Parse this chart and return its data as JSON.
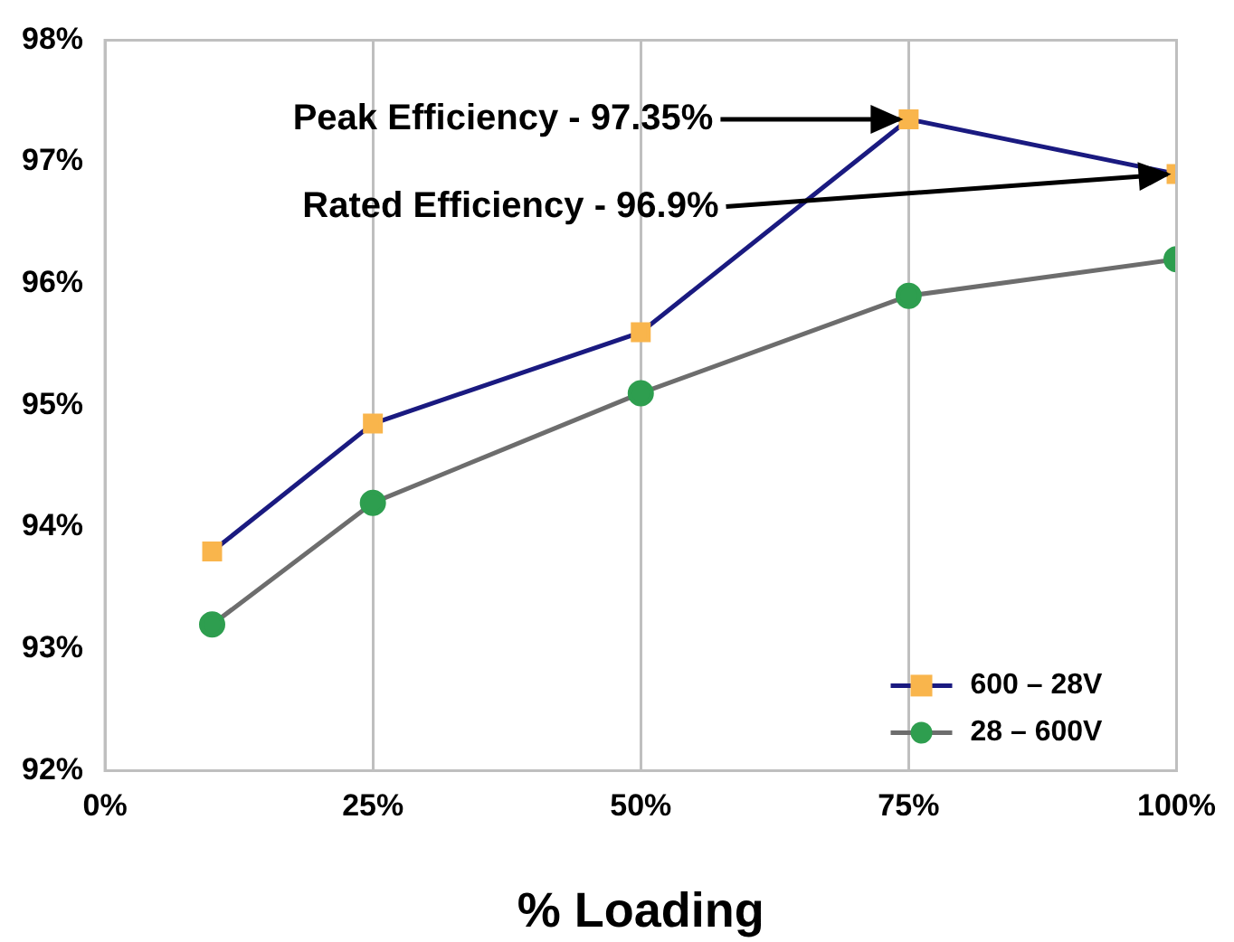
{
  "chart_data": {
    "type": "line",
    "xlabel": "% Loading",
    "x": [
      10,
      25,
      50,
      75,
      100
    ],
    "series": [
      {
        "name": "600 – 28V",
        "color": "#1a1a80",
        "colors": [
          "#f9b54c",
          "#f9b54c",
          "#f9b54c",
          "#f9b54c",
          "#f9b54c"
        ],
        "marker": "square",
        "values": [
          93.8,
          94.85,
          95.6,
          97.35,
          96.9
        ]
      },
      {
        "name": "28 – 600V",
        "color": "#6d6d6d",
        "colors": [
          "#2e9e4f",
          "#2e9e4f",
          "#2e9e4f",
          "#2e9e4f",
          "#2e9e4f"
        ],
        "marker": "circle",
        "values": [
          93.2,
          94.2,
          95.1,
          95.9,
          96.2
        ]
      }
    ],
    "xlim": [
      0,
      100
    ],
    "xticks": [
      {
        "value": 0,
        "label": "0%"
      },
      {
        "value": 25,
        "label": "25%"
      },
      {
        "value": 50,
        "label": "50%"
      },
      {
        "value": 75,
        "label": "75%"
      },
      {
        "value": 100,
        "label": "100%"
      }
    ],
    "ylim": [
      92,
      98
    ],
    "yticks": [
      {
        "value": 92,
        "label": "92%"
      },
      {
        "value": 93,
        "label": "93%"
      },
      {
        "value": 94,
        "label": "94%"
      },
      {
        "value": 95,
        "label": "95%"
      },
      {
        "value": 96,
        "label": "96%"
      },
      {
        "value": 97,
        "label": "97%"
      },
      {
        "value": 98,
        "label": "98%"
      }
    ],
    "annotations": [
      {
        "text": "Peak Efficiency - 97.35%",
        "x": 75,
        "y": 97.35
      },
      {
        "text": "Rated Efficiency - 96.9%",
        "x": 100,
        "y": 96.9
      }
    ],
    "grid": "x",
    "legend": "bottom right",
    "line_style": "solid"
  }
}
